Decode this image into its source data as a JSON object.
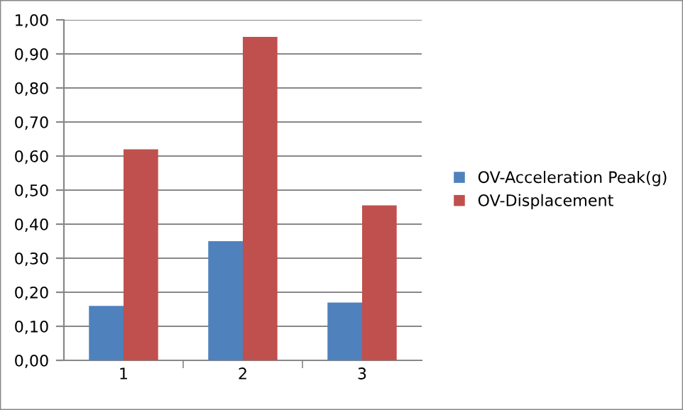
{
  "chart_data": {
    "type": "bar",
    "categories": [
      "1",
      "2",
      "3"
    ],
    "series": [
      {
        "name": "OV-Acceleration Peak(g)",
        "color": "#4f81bd",
        "values": [
          0.16,
          0.35,
          0.17
        ]
      },
      {
        "name": "OV-Displacement",
        "color": "#c0504d",
        "values": [
          0.62,
          0.95,
          0.455
        ]
      }
    ],
    "ylim": [
      0,
      1
    ],
    "yticks": [
      {
        "value": 0,
        "label": "0,00"
      },
      {
        "value": 0.1,
        "label": "0,10"
      },
      {
        "value": 0.2,
        "label": "0,20"
      },
      {
        "value": 0.3,
        "label": "0,30"
      },
      {
        "value": 0.4,
        "label": "0,40"
      },
      {
        "value": 0.5,
        "label": "0,50"
      },
      {
        "value": 0.6,
        "label": "0,60"
      },
      {
        "value": 0.7,
        "label": "0,70"
      },
      {
        "value": 0.8,
        "label": "0,80"
      },
      {
        "value": 0.9,
        "label": "0,90"
      },
      {
        "value": 1,
        "label": "1,00"
      }
    ],
    "grid": "y",
    "legend": "right"
  }
}
